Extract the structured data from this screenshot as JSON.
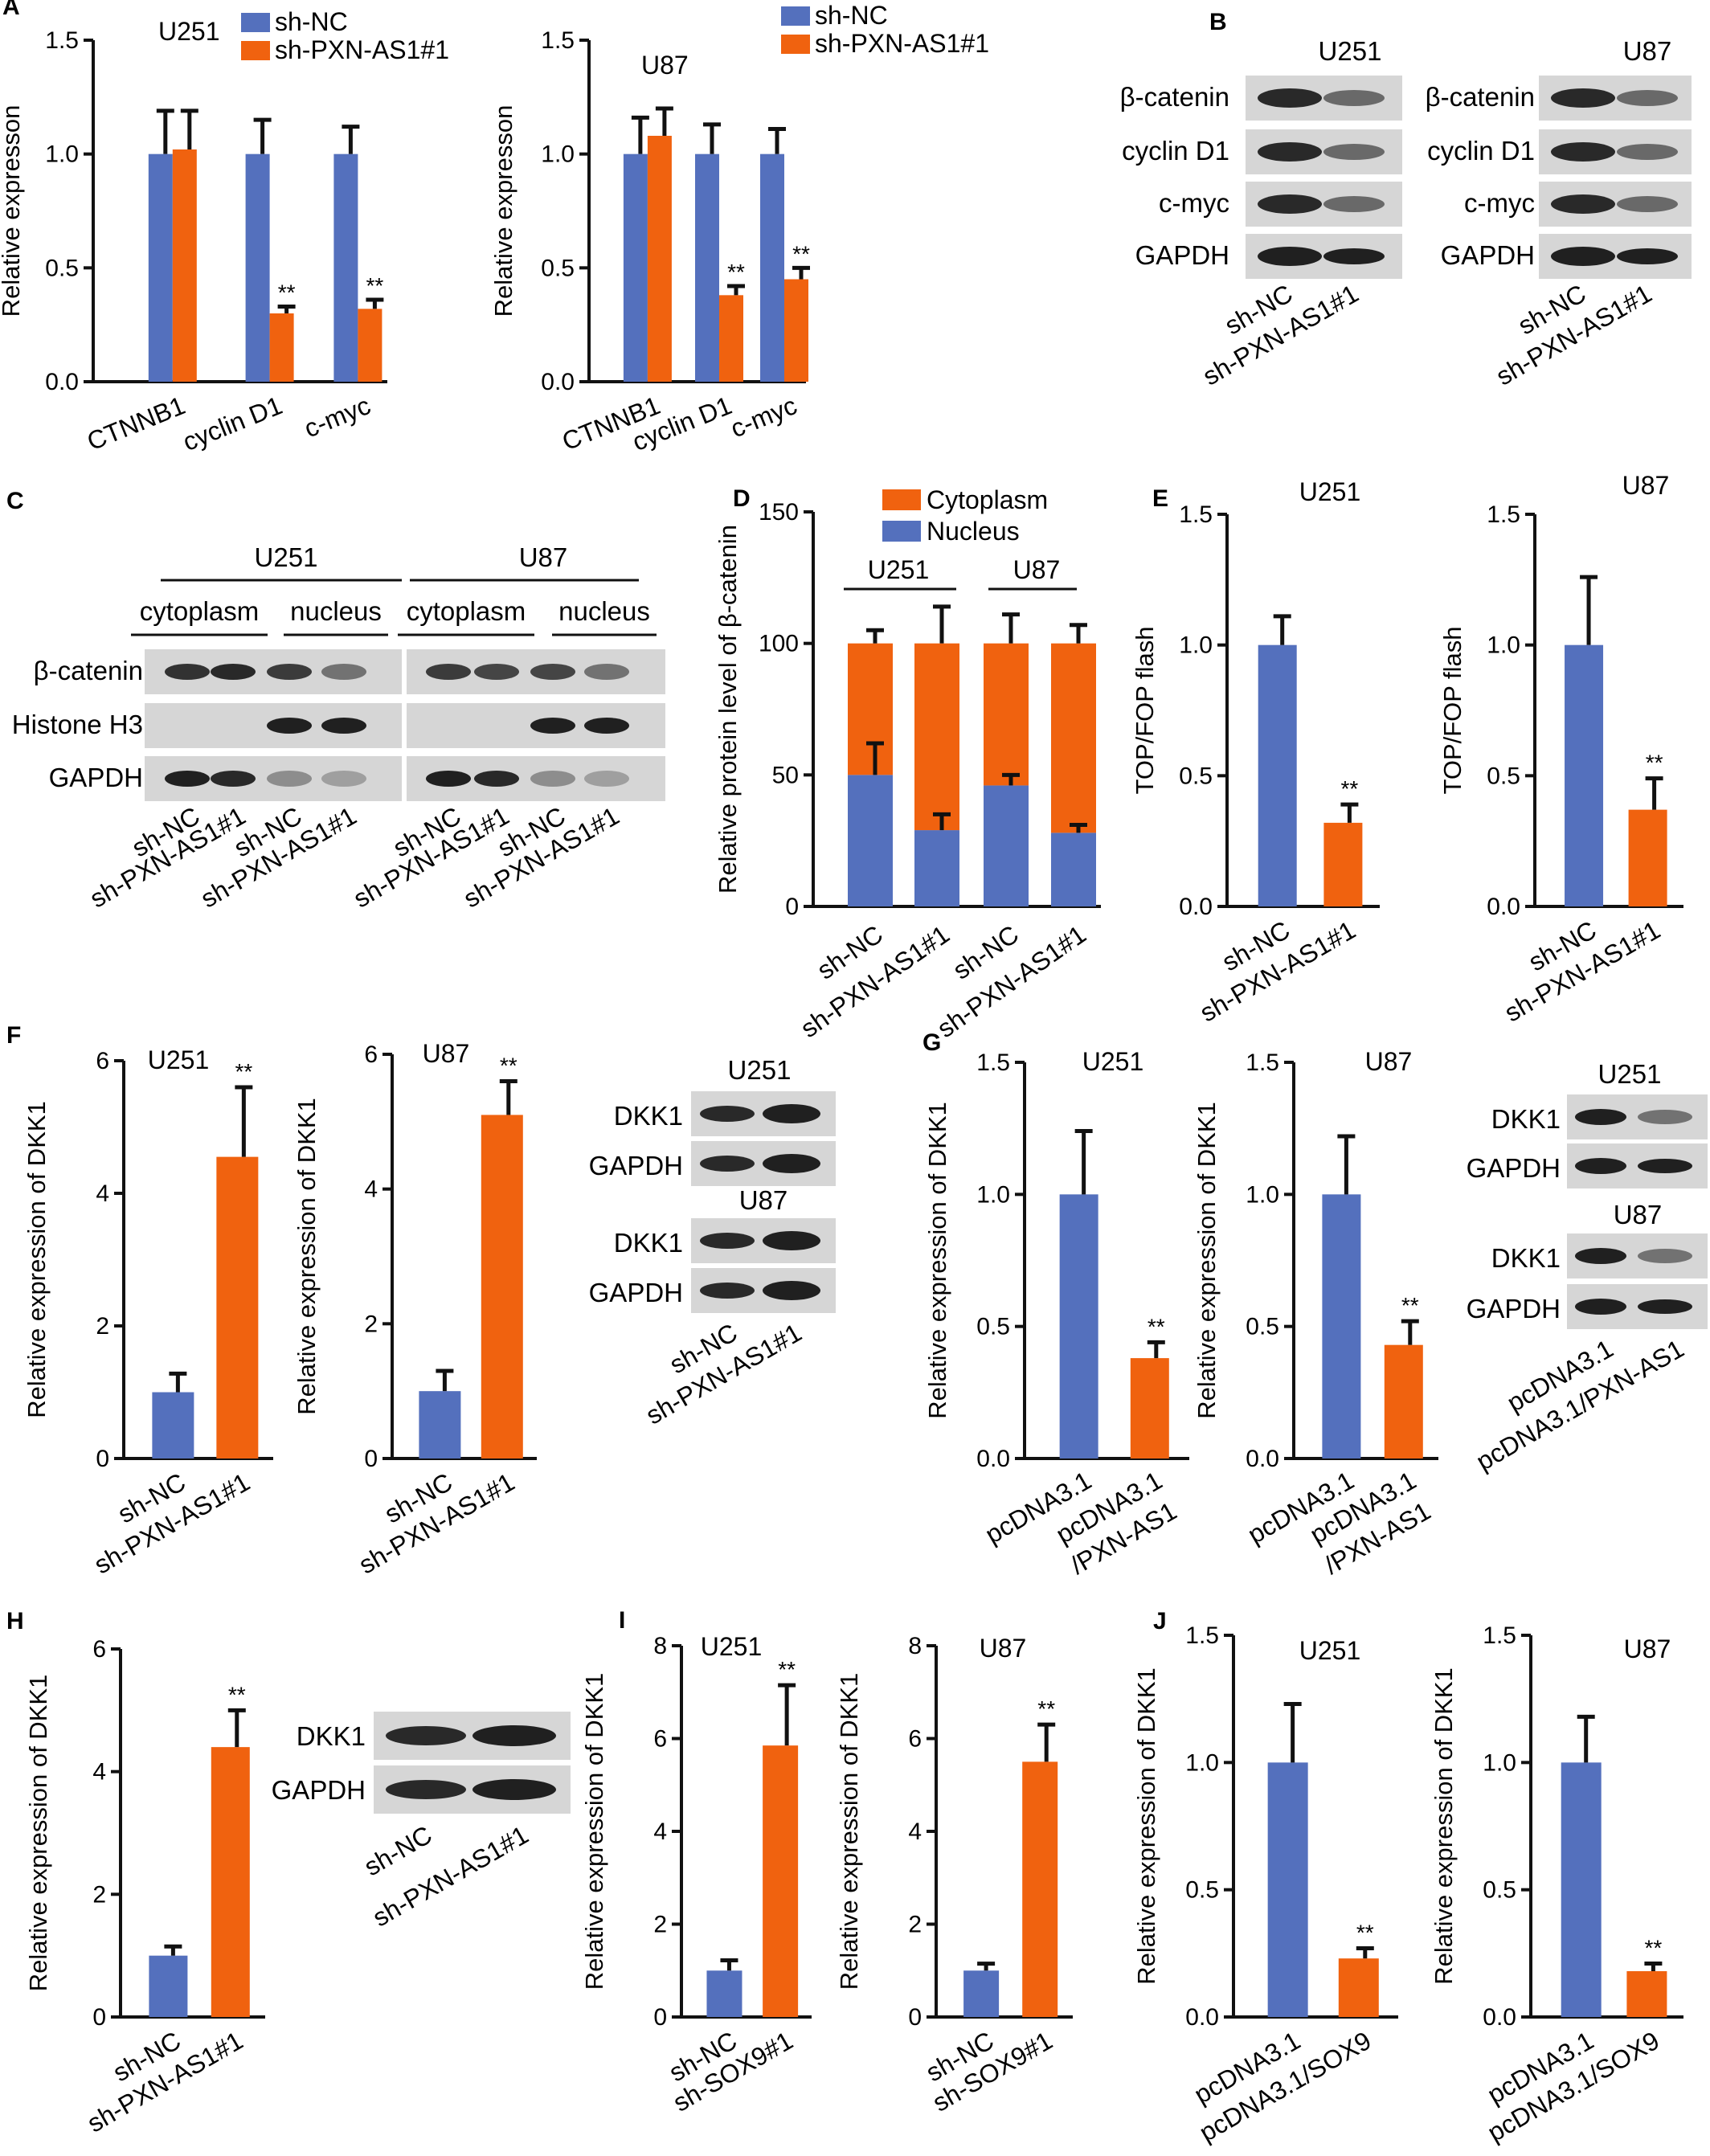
{
  "colors": {
    "blue": "#5470bd",
    "orange": "#f0620f",
    "axis": "#111111"
  },
  "panels": {
    "A": {
      "label": "A"
    },
    "B": {
      "label": "B",
      "blots": [
        {
          "title": "U251",
          "rows": [
            "β-catenin",
            "cyclin D1",
            "c-myc",
            "GAPDH"
          ],
          "lanes": [
            "sh-NC",
            "sh-PXN-AS1#1"
          ]
        },
        {
          "title": "U87",
          "rows": [
            "β-catenin",
            "cyclin D1",
            "c-myc",
            "GAPDH"
          ],
          "lanes": [
            "sh-NC",
            "sh-PXN-AS1#1"
          ]
        }
      ]
    },
    "C": {
      "label": "C",
      "cells": [
        "U251",
        "U87"
      ],
      "fractions": [
        "cytoplasm",
        "nucleus",
        "cytoplasm",
        "nucleus"
      ],
      "rows": [
        "β-catenin",
        "Histone H3",
        "GAPDH"
      ],
      "lanes": [
        "sh-NC",
        "sh-PXN-AS1#1",
        "sh-NC",
        "sh-PXN-AS1#1",
        "sh-NC",
        "sh-PXN-AS1#1",
        "sh-NC",
        "sh-PXN-AS1#1"
      ]
    },
    "D": {
      "label": "D"
    },
    "E": {
      "label": "E"
    },
    "F": {
      "label": "F",
      "blot": {
        "groups": [
          "U251",
          "U87"
        ],
        "rows": [
          "DKK1",
          "GAPDH"
        ],
        "lanes": [
          "sh-NC",
          "sh-PXN-AS1#1"
        ]
      }
    },
    "G": {
      "label": "G",
      "blot": {
        "groups": [
          "U251",
          "U87"
        ],
        "rows": [
          "DKK1",
          "GAPDH"
        ],
        "lanes": [
          "pcDNA3.1",
          "pcDNA3.1/PXN-AS1"
        ]
      }
    },
    "H": {
      "label": "H",
      "blot": {
        "rows": [
          "DKK1",
          "GAPDH"
        ],
        "lanes": [
          "sh-NC",
          "sh-PXN-AS1#1"
        ]
      }
    },
    "I": {
      "label": "I"
    },
    "J": {
      "label": "J"
    }
  },
  "chart_data": [
    {
      "id": "A1",
      "type": "bar",
      "title": "U251",
      "ylabel": "Relative expresson",
      "ylim": [
        0,
        1.5
      ],
      "yticks": [
        "0.0",
        "0.5",
        "1.0",
        "1.5"
      ],
      "categories": [
        "CTNNB1",
        "cyclin D1",
        "c-myc"
      ],
      "series": [
        {
          "name": "sh-NC",
          "values": [
            1.0,
            1.0,
            1.0
          ],
          "errors": [
            0.19,
            0.15,
            0.12
          ]
        },
        {
          "name": "sh-PXN-AS1#1",
          "values": [
            1.02,
            0.3,
            0.32
          ],
          "errors": [
            0.17,
            0.03,
            0.04
          ]
        }
      ],
      "annotations": [
        "",
        "**",
        "**"
      ]
    },
    {
      "id": "A2",
      "type": "bar",
      "title": "U87",
      "ylabel": "Relative expresson",
      "ylim": [
        0,
        1.5
      ],
      "yticks": [
        "0.0",
        "0.5",
        "1.0",
        "1.5"
      ],
      "categories": [
        "CTNNB1",
        "cyclin D1",
        "c-myc"
      ],
      "series": [
        {
          "name": "sh-NC",
          "values": [
            1.0,
            1.0,
            1.0
          ],
          "errors": [
            0.16,
            0.13,
            0.11
          ]
        },
        {
          "name": "sh-PXN-AS1#1",
          "values": [
            1.08,
            0.38,
            0.45
          ],
          "errors": [
            0.12,
            0.04,
            0.05
          ]
        }
      ],
      "annotations": [
        "",
        "**",
        "**"
      ]
    },
    {
      "id": "D",
      "type": "bar",
      "stacked": true,
      "ylabel": "Relative protein level of β-catenin",
      "ylim": [
        0,
        150
      ],
      "yticks": [
        "0",
        "50",
        "100",
        "150"
      ],
      "categories": [
        "sh-NC",
        "sh-PXN-AS1#1",
        "sh-NC",
        "sh-PXN-AS1#1"
      ],
      "groups": [
        "U251",
        "U87"
      ],
      "series": [
        {
          "name": "Nucleus",
          "values": [
            50,
            29,
            46,
            28
          ],
          "errors": [
            12,
            6,
            4,
            3
          ]
        },
        {
          "name": "Cytoplasm",
          "values": [
            50,
            71,
            54,
            72
          ],
          "errors": [
            5,
            14,
            11,
            7
          ]
        }
      ]
    },
    {
      "id": "E1",
      "type": "bar",
      "title": "U251",
      "ylabel": "TOP/FOP flash",
      "ylim": [
        0,
        1.5
      ],
      "yticks": [
        "0.0",
        "0.5",
        "1.0",
        "1.5"
      ],
      "categories": [
        "sh-NC",
        "sh-PXN-AS1#1"
      ],
      "values": [
        1.0,
        0.32
      ],
      "errors": [
        0.11,
        0.07
      ],
      "annotations": [
        "",
        "**"
      ]
    },
    {
      "id": "E2",
      "type": "bar",
      "title": "U87",
      "ylabel": "TOP/FOP flash",
      "ylim": [
        0,
        1.5
      ],
      "yticks": [
        "0.0",
        "0.5",
        "1.0",
        "1.5"
      ],
      "categories": [
        "sh-NC",
        "sh-PXN-AS1#1"
      ],
      "values": [
        1.0,
        0.37
      ],
      "errors": [
        0.26,
        0.12
      ],
      "annotations": [
        "",
        "**"
      ]
    },
    {
      "id": "F1",
      "type": "bar",
      "title": "U251",
      "ylabel": "Relative expression of DKK1",
      "ylim": [
        0,
        6
      ],
      "yticks": [
        "0",
        "2",
        "4",
        "6"
      ],
      "categories": [
        "sh-NC",
        "sh-PXN-AS1#1"
      ],
      "values": [
        1.0,
        4.55
      ],
      "errors": [
        0.28,
        1.05
      ],
      "annotations": [
        "",
        "**"
      ]
    },
    {
      "id": "F2",
      "type": "bar",
      "title": "U87",
      "ylabel": "Relative expression of DKK1",
      "ylim": [
        0,
        6
      ],
      "yticks": [
        "0",
        "2",
        "4",
        "6"
      ],
      "categories": [
        "sh-NC",
        "sh-PXN-AS1#1"
      ],
      "values": [
        1.0,
        5.1
      ],
      "errors": [
        0.3,
        0.5
      ],
      "annotations": [
        "",
        "**"
      ]
    },
    {
      "id": "G1",
      "type": "bar",
      "title": "U251",
      "ylabel": "Relative expression of DKK1",
      "ylim": [
        0,
        1.5
      ],
      "yticks": [
        "0.0",
        "0.5",
        "1.0",
        "1.5"
      ],
      "categories": [
        "pcDNA3.1",
        "pcDNA3.1 /PXN-AS1"
      ],
      "values": [
        1.0,
        0.38
      ],
      "errors": [
        0.24,
        0.06
      ],
      "annotations": [
        "",
        "**"
      ]
    },
    {
      "id": "G2",
      "type": "bar",
      "title": "U87",
      "ylabel": "Relative expression of DKK1",
      "ylim": [
        0,
        1.5
      ],
      "yticks": [
        "0.0",
        "0.5",
        "1.0",
        "1.5"
      ],
      "categories": [
        "pcDNA3.1",
        "pcDNA3.1 /PXN-AS1"
      ],
      "values": [
        1.0,
        0.43
      ],
      "errors": [
        0.22,
        0.09
      ],
      "annotations": [
        "",
        "**"
      ]
    },
    {
      "id": "H",
      "type": "bar",
      "ylabel": "Relative expression of DKK1",
      "ylim": [
        0,
        6
      ],
      "yticks": [
        "0",
        "2",
        "4",
        "6"
      ],
      "categories": [
        "sh-NC",
        "sh-PXN-AS1#1"
      ],
      "values": [
        1.0,
        4.4
      ],
      "errors": [
        0.15,
        0.6
      ],
      "annotations": [
        "",
        "**"
      ]
    },
    {
      "id": "I1",
      "type": "bar",
      "title": "U251",
      "ylabel": "Relative expression of DKK1",
      "ylim": [
        0,
        8
      ],
      "yticks": [
        "0",
        "2",
        "4",
        "6",
        "8"
      ],
      "categories": [
        "sh-NC",
        "sh-SOX9#1"
      ],
      "values": [
        1.0,
        5.85
      ],
      "errors": [
        0.22,
        1.3
      ],
      "annotations": [
        "",
        "**"
      ]
    },
    {
      "id": "I2",
      "type": "bar",
      "title": "U87",
      "ylabel": "Relative expression of DKK1",
      "ylim": [
        0,
        8
      ],
      "yticks": [
        "0",
        "2",
        "4",
        "6",
        "8"
      ],
      "categories": [
        "sh-NC",
        "sh-SOX9#1"
      ],
      "values": [
        1.0,
        5.5
      ],
      "errors": [
        0.15,
        0.8
      ],
      "annotations": [
        "",
        "**"
      ]
    },
    {
      "id": "J1",
      "type": "bar",
      "title": "U251",
      "ylabel": "Relative expression of DKK1",
      "ylim": [
        0,
        1.5
      ],
      "yticks": [
        "0.0",
        "0.5",
        "1.0",
        "1.5"
      ],
      "categories": [
        "pcDNA3.1",
        "pcDNA3.1/SOX9"
      ],
      "values": [
        1.0,
        0.23
      ],
      "errors": [
        0.23,
        0.04
      ],
      "annotations": [
        "",
        "**"
      ]
    },
    {
      "id": "J2",
      "type": "bar",
      "title": "U87",
      "ylabel": "Relative expression of DKK1",
      "ylim": [
        0,
        1.5
      ],
      "yticks": [
        "0.0",
        "0.5",
        "1.0",
        "1.5"
      ],
      "categories": [
        "pcDNA3.1",
        "pcDNA3.1/SOX9"
      ],
      "values": [
        1.0,
        0.18
      ],
      "errors": [
        0.18,
        0.03
      ],
      "annotations": [
        "",
        "**"
      ]
    }
  ]
}
